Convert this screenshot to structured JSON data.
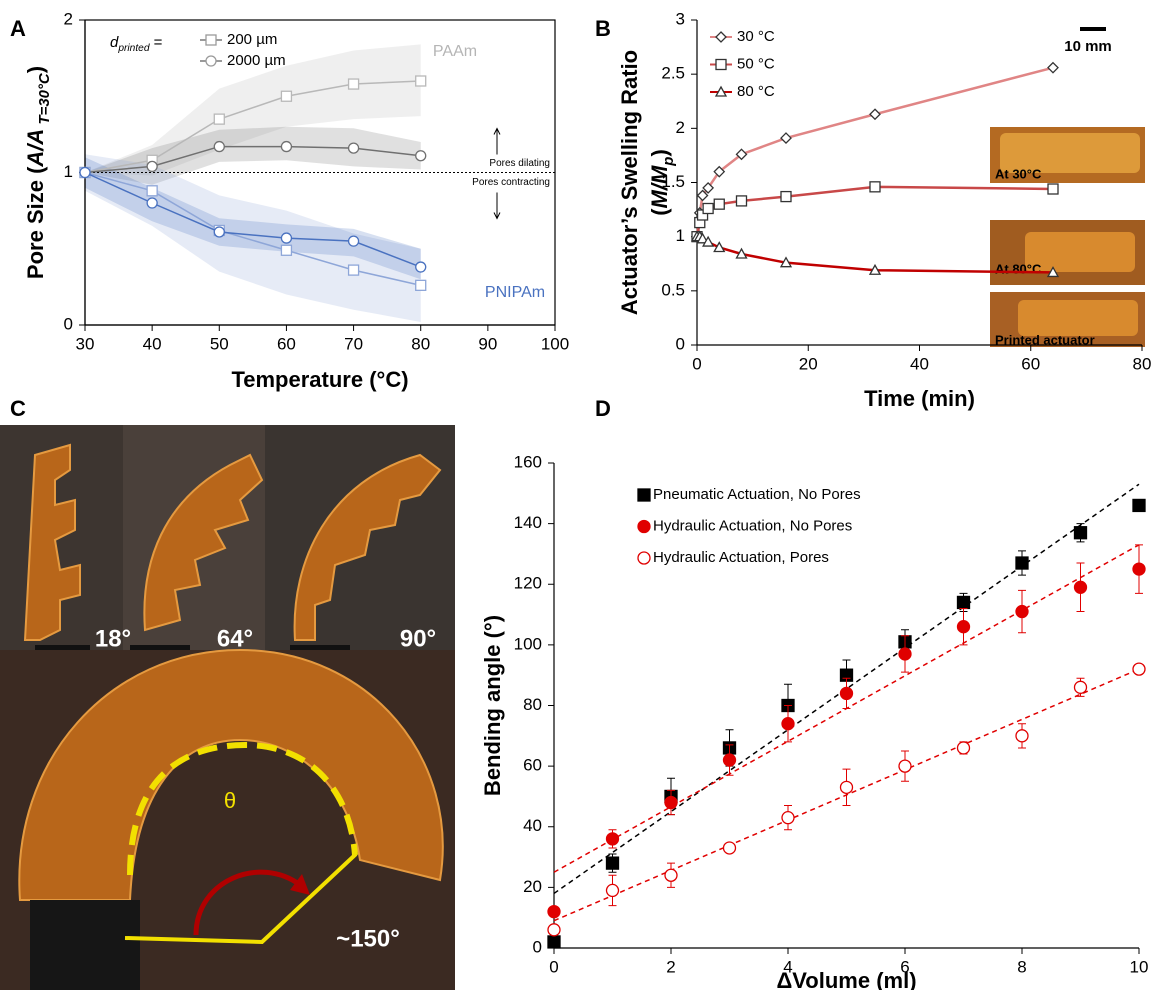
{
  "panel_labels": [
    "A",
    "B",
    "C",
    "D"
  ],
  "photo_panel": {
    "angle_labels": [
      "18°",
      "64°",
      "90°"
    ],
    "theta": "θ",
    "final_angle": "~150°"
  },
  "chart_data": [
    {
      "type": "line",
      "frame": true,
      "xlabel": [
        [
          {
            "text": "Temperature (°C)"
          }
        ]
      ],
      "ylabel": [
        [
          {
            "text": "Pore Size ("
          },
          {
            "text": "A/A",
            "style": "italic"
          },
          {
            "text": " T=30°C",
            "style": "italic-sub"
          },
          {
            "text": ")"
          }
        ]
      ],
      "xlim": [
        30,
        100
      ],
      "xticks": [
        30,
        40,
        50,
        60,
        70,
        80,
        90,
        100
      ],
      "ylim": [
        0,
        2
      ],
      "yticks": [
        0,
        1,
        2
      ],
      "hline": 1,
      "region_labels": [
        "Pores dilating",
        "Pores contracting"
      ],
      "group_labels": [
        {
          "text": "PAAm",
          "color": "#b5b5b5"
        },
        {
          "text": "PNIPAm",
          "color": "#4a72c0"
        }
      ],
      "legend_loc": "upper left",
      "legend_title": [
        {
          "text": "d",
          "style": "italic"
        },
        {
          "text": "printed",
          "style": "italic-sub"
        },
        {
          "text": " ="
        }
      ],
      "legend": [
        {
          "name": "200 µm",
          "marker": "square",
          "color": "#9a9a9a"
        },
        {
          "name": "2000 µm",
          "marker": "circle",
          "color": "#9a9a9a"
        }
      ],
      "x": [
        30,
        40,
        50,
        60,
        70,
        80
      ],
      "series": [
        {
          "color": "#b8b8b8",
          "marker": "square",
          "values": [
            1,
            1.08,
            1.35,
            1.5,
            1.58,
            1.6
          ],
          "lower": [
            1,
            0.98,
            1.15,
            1.3,
            1.35,
            1.37
          ],
          "upper": [
            1,
            1.18,
            1.55,
            1.7,
            1.8,
            1.84
          ]
        },
        {
          "color": "#707070",
          "marker": "circle",
          "values": [
            1,
            1.04,
            1.17,
            1.17,
            1.16,
            1.11
          ],
          "lower": [
            1,
            0.92,
            1.07,
            1.08,
            1.04,
            1.02
          ],
          "upper": [
            1,
            1.16,
            1.28,
            1.3,
            1.29,
            1.2
          ]
        },
        {
          "color": "#8ea6d8",
          "marker": "square",
          "values": [
            1,
            0.88,
            0.62,
            0.49,
            0.36,
            0.26
          ],
          "lower": [
            0.88,
            0.65,
            0.35,
            0.2,
            0.1,
            0.02
          ],
          "upper": [
            1.12,
            1.05,
            0.85,
            0.75,
            0.6,
            0.5
          ]
        },
        {
          "color": "#4a72c0",
          "marker": "circle",
          "values": [
            1,
            0.8,
            0.61,
            0.57,
            0.55,
            0.38
          ],
          "lower": [
            0.9,
            0.68,
            0.52,
            0.48,
            0.45,
            0.3
          ],
          "upper": [
            1.1,
            0.9,
            0.7,
            0.66,
            0.63,
            0.5
          ]
        }
      ]
    },
    {
      "type": "line",
      "frame": false,
      "xlabel": [
        [
          {
            "text": "Time (min)"
          }
        ]
      ],
      "ylabel": [
        [
          {
            "text": "Actuator’s Swelling Ratio"
          }
        ],
        [
          {
            "text": "("
          },
          {
            "text": "M/M",
            "style": "italic"
          },
          {
            "text": "p",
            "style": "italic-sub"
          },
          {
            "text": ")"
          }
        ]
      ],
      "xlim": [
        0,
        80
      ],
      "xticks": [
        0,
        20,
        40,
        60,
        80
      ],
      "ylim": [
        0,
        3
      ],
      "yticks": [
        0,
        0.5,
        1,
        1.5,
        2,
        2.5,
        3
      ],
      "scale_bar": "10 mm",
      "inset_labels": [
        "At 30°C",
        "At 80°C",
        "Printed actuator"
      ],
      "legend_loc": "upper left",
      "x": [
        0,
        0.5,
        1,
        2,
        4,
        8,
        16,
        32,
        64
      ],
      "series": [
        {
          "name": "30 °C",
          "color": "#e08585",
          "marker": "diamond",
          "marker_color": "#333333",
          "values": [
            1,
            1.22,
            1.38,
            1.45,
            1.6,
            1.76,
            1.91,
            2.13,
            2.56
          ]
        },
        {
          "name": "50 °C",
          "color": "#c84848",
          "marker": "square",
          "marker_color": "#333333",
          "values": [
            1,
            1.13,
            1.2,
            1.26,
            1.3,
            1.33,
            1.37,
            1.46,
            1.44
          ]
        },
        {
          "name": "80 °C",
          "color": "#c00000",
          "marker": "triangle",
          "marker_color": "#333333",
          "values": [
            1,
            1,
            0.98,
            0.95,
            0.9,
            0.84,
            0.76,
            0.69,
            0.67
          ]
        }
      ]
    },
    {
      "type": "scatter",
      "frame": false,
      "xlabel": [
        [
          {
            "text": "ΔVolume (ml)"
          }
        ]
      ],
      "ylabel": [
        [
          {
            "text": "Bending angle (°)"
          }
        ]
      ],
      "xlim": [
        0,
        10
      ],
      "xticks": [
        0,
        2,
        4,
        6,
        8,
        10
      ],
      "ylim": [
        0,
        160
      ],
      "yticks": [
        0,
        20,
        40,
        60,
        80,
        100,
        120,
        140,
        160
      ],
      "legend_loc": "upper left",
      "x": [
        0,
        1,
        2,
        3,
        4,
        5,
        6,
        7,
        8,
        9,
        10
      ],
      "fit_x": [
        0,
        10
      ],
      "series": [
        {
          "name": "Pneumatic Actuation, No Pores",
          "color": "#000000",
          "marker": "square",
          "filled": true,
          "values": [
            2,
            28,
            50,
            66,
            80,
            90,
            101,
            114,
            127,
            137,
            146
          ],
          "errors": [
            0,
            3,
            6,
            6,
            7,
            5,
            4,
            3,
            4,
            3,
            0
          ],
          "fit": [
            18,
            153
          ]
        },
        {
          "name": "Hydraulic Actuation, No Pores",
          "color": "#e00000",
          "marker": "circle",
          "filled": true,
          "values": [
            12,
            36,
            48,
            62,
            74,
            84,
            97,
            106,
            111,
            119,
            125
          ],
          "errors": [
            0,
            3,
            4,
            5,
            6,
            5,
            6,
            6,
            7,
            8,
            8
          ],
          "fit": [
            25,
            133
          ]
        },
        {
          "name": "Hydraulic Actuation, Pores",
          "color": "#e00000",
          "marker": "circle",
          "filled": false,
          "values": [
            6,
            19,
            24,
            33,
            43,
            53,
            60,
            66,
            70,
            86,
            92
          ],
          "errors": [
            0,
            5,
            4,
            1,
            4,
            6,
            5,
            2,
            4,
            3,
            0
          ],
          "fit": [
            9,
            92
          ]
        }
      ]
    }
  ]
}
